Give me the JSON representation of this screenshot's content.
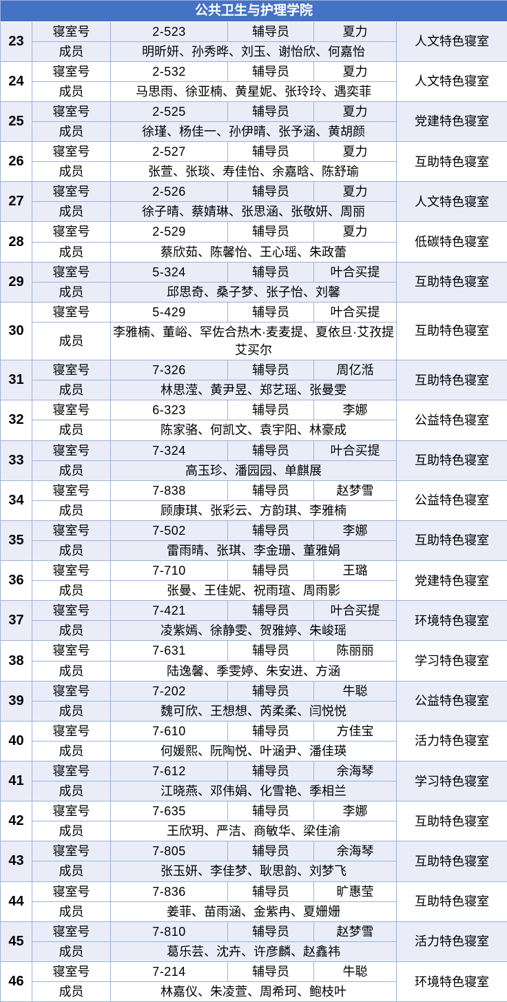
{
  "header": {
    "title": "公共卫生与护理学院"
  },
  "labels": {
    "room_label": "寝室号",
    "counselor_label": "辅导员",
    "member_label": "成员"
  },
  "colors": {
    "header_bg": "#4472C4",
    "header_text": "#FFFFFF",
    "band_bg": "#EAEDF8",
    "row_bg": "#FFFFFF",
    "border": "#9DB0D9",
    "text": "#000000"
  },
  "records": [
    {
      "no": "23",
      "room": "2-523",
      "counselor": "夏力",
      "members": "明昕妍、孙秀晔、刘玉、谢怡欣、何嘉怡",
      "type": "人文特色寝室"
    },
    {
      "no": "24",
      "room": "2-532",
      "counselor": "夏力",
      "members": "马思雨、徐亚楠、黄星妮、张玲玲、遇奕菲",
      "type": "人文特色寝室"
    },
    {
      "no": "25",
      "room": "2-525",
      "counselor": "夏力",
      "members": "徐瑾、杨佳一、孙伊晴、张予涵、黄胡颜",
      "type": "党建特色寝室"
    },
    {
      "no": "26",
      "room": "2-527",
      "counselor": "夏力",
      "members": "张萱、张琰、寿佳怡、余嘉晗、陈舒瑜",
      "type": "互助特色寝室"
    },
    {
      "no": "27",
      "room": "2-526",
      "counselor": "夏力",
      "members": "徐子晴、蔡婧琳、张思涵、张敬妍、周丽",
      "type": "人文特色寝室"
    },
    {
      "no": "28",
      "room": "2-529",
      "counselor": "夏力",
      "members": "蔡欣茹、陈馨怡、王心瑶、朱政蕾",
      "type": "低碳特色寝室"
    },
    {
      "no": "29",
      "room": "5-324",
      "counselor": "叶合买提",
      "members": "邱思奇、桑子梦、张子怡、刘馨",
      "type": "互助特色寝室"
    },
    {
      "no": "30",
      "room": "5-429",
      "counselor": "叶合买提",
      "members": "李雅楠、董峪、罕佐合热木·麦麦提、夏依旦·艾孜提艾买尔",
      "type": "互助特色寝室"
    },
    {
      "no": "31",
      "room": "7-326",
      "counselor": "周亿湉",
      "members": "林思滢、黄尹昱、郑艺瑶、张曼雯",
      "type": "互助特色寝室"
    },
    {
      "no": "32",
      "room": "6-323",
      "counselor": "李娜",
      "members": "陈家骆、何凯文、袁宇阳、林豪成",
      "type": "公益特色寝室"
    },
    {
      "no": "33",
      "room": "7-324",
      "counselor": "叶合买提",
      "members": "高玉珍、潘园园、单麒展",
      "type": "互助特色寝室"
    },
    {
      "no": "34",
      "room": "7-838",
      "counselor": "赵梦雪",
      "members": "顾康琪、张彩云、方韵琪、李雅楠",
      "type": "公益特色寝室"
    },
    {
      "no": "35",
      "room": "7-502",
      "counselor": "李娜",
      "members": "雷雨晴、张琪、李金珊、董雅娟",
      "type": "互助特色寝室"
    },
    {
      "no": "36",
      "room": "7-710",
      "counselor": "王璐",
      "members": "张曼、王佳妮、祝雨瑄、周雨影",
      "type": "党建特色寝室"
    },
    {
      "no": "37",
      "room": "7-421",
      "counselor": "叶合买提",
      "members": "凌紫嫣、徐静雯、贺雅婷、朱峻瑶",
      "type": "环境特色寝室"
    },
    {
      "no": "38",
      "room": "7-631",
      "counselor": "陈丽丽",
      "members": "陆逸馨、季雯婷、朱安进、方涵",
      "type": "学习特色寝室"
    },
    {
      "no": "39",
      "room": "7-202",
      "counselor": "牛聪",
      "members": "魏可欣、王想想、芮柔柔、闫悦悦",
      "type": "公益特色寝室"
    },
    {
      "no": "40",
      "room": "7-610",
      "counselor": "方佳宝",
      "members": "何媛熙、阮陶悦、叶涵尹、潘佳瑛",
      "type": "活力特色寝室"
    },
    {
      "no": "41",
      "room": "7-612",
      "counselor": "余海琴",
      "members": "江晓燕、邓伟娟、化雪艳、季相兰",
      "type": "学习特色寝室"
    },
    {
      "no": "42",
      "room": "7-635",
      "counselor": "李娜",
      "members": "王欣玥、严洁、商敏华、梁佳渝",
      "type": "互助特色寝室"
    },
    {
      "no": "43",
      "room": "7-805",
      "counselor": "余海琴",
      "members": "张玉妍、李佳梦、耿思韵、刘梦飞",
      "type": "互助特色寝室"
    },
    {
      "no": "44",
      "room": "7-836",
      "counselor": "旷惠莹",
      "members": "姜菲、苗雨涵、金紫冉、夏姗姗",
      "type": "互助特色寝室"
    },
    {
      "no": "45",
      "room": "7-810",
      "counselor": "赵梦雪",
      "members": "葛乐芸、沈卉、许彦麟、赵鑫祎",
      "type": "活力特色寝室"
    },
    {
      "no": "46",
      "room": "7-214",
      "counselor": "牛聪",
      "members": "林嘉仪、朱凌萱、周希珂、鲍枝叶",
      "type": "环境特色寝室"
    }
  ]
}
